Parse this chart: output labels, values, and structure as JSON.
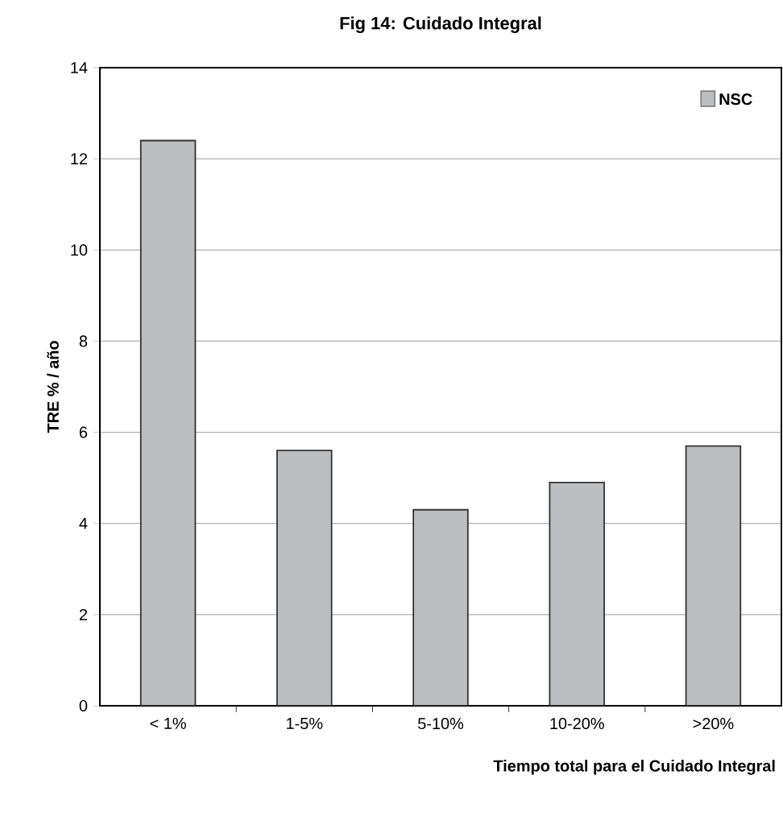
{
  "chart_data": {
    "type": "bar",
    "title": "Fig 14: Cuidado Integral",
    "xlabel": "Tiempo total para el Cuidado Integral",
    "ylabel": "TRE   % / año",
    "categories": [
      "< 1%",
      "1-5%",
      "5-10%",
      "10-20%",
      ">20%"
    ],
    "series": [
      {
        "name": "NSC",
        "color": "#bdbec0",
        "values": [
          12.4,
          5.6,
          4.3,
          4.9,
          5.7
        ]
      }
    ],
    "ylim": [
      0,
      14
    ],
    "yticks": [
      0,
      2,
      4,
      6,
      8,
      10,
      12,
      14
    ],
    "grid": "y",
    "legend": "top right"
  }
}
